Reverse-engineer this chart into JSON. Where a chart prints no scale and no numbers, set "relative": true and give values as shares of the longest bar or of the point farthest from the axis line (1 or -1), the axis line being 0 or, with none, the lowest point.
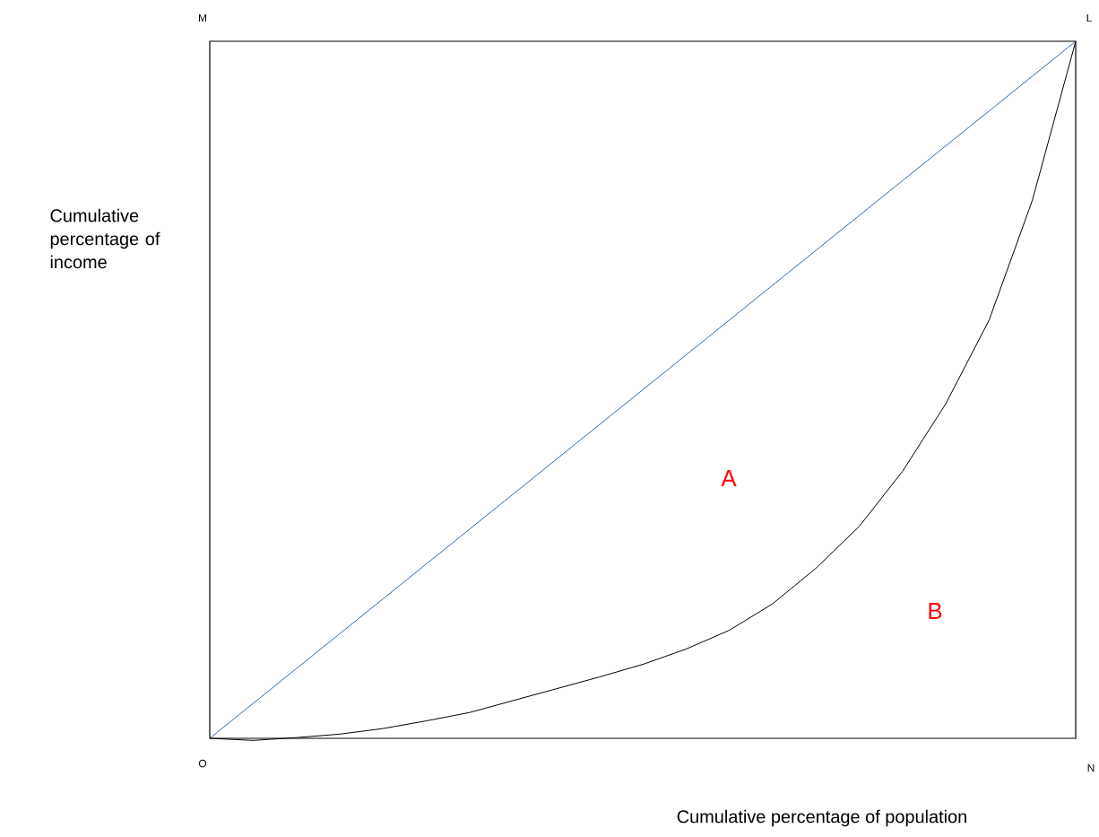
{
  "chart_data": {
    "type": "line",
    "relative": true,
    "xlabel": "Cumulative percentage of population",
    "ylabel": "Cumulative percentage of income",
    "tick_labels": false,
    "marker": "none",
    "line_style": "solid",
    "categories": [
      null,
      null,
      null,
      null,
      null,
      null,
      null,
      null,
      null,
      null,
      null,
      null,
      null,
      null,
      null,
      null,
      null,
      null,
      null,
      null,
      null
    ],
    "series": [
      {
        "color": "#2e6aa6",
        "values": [
          0,
          0.05,
          0.1,
          0.15,
          0.2,
          0.25,
          0.3,
          0.35,
          0.4,
          0.45,
          0.5,
          0.55,
          0.6,
          0.65,
          0.7,
          0.75,
          0.8,
          0.85,
          0.9,
          0.95,
          1
        ]
      },
      {
        "color": "#000000",
        "values": [
          0,
          -0.003,
          0.001,
          0.006,
          0.014,
          0.025,
          0.037,
          0.054,
          0.071,
          0.088,
          0.106,
          0.128,
          0.155,
          0.193,
          0.244,
          0.304,
          0.383,
          0.48,
          0.6,
          0.772,
          1
        ]
      }
    ],
    "annotations": [
      "O",
      "M",
      "L",
      "N",
      "A",
      "B"
    ]
  }
}
